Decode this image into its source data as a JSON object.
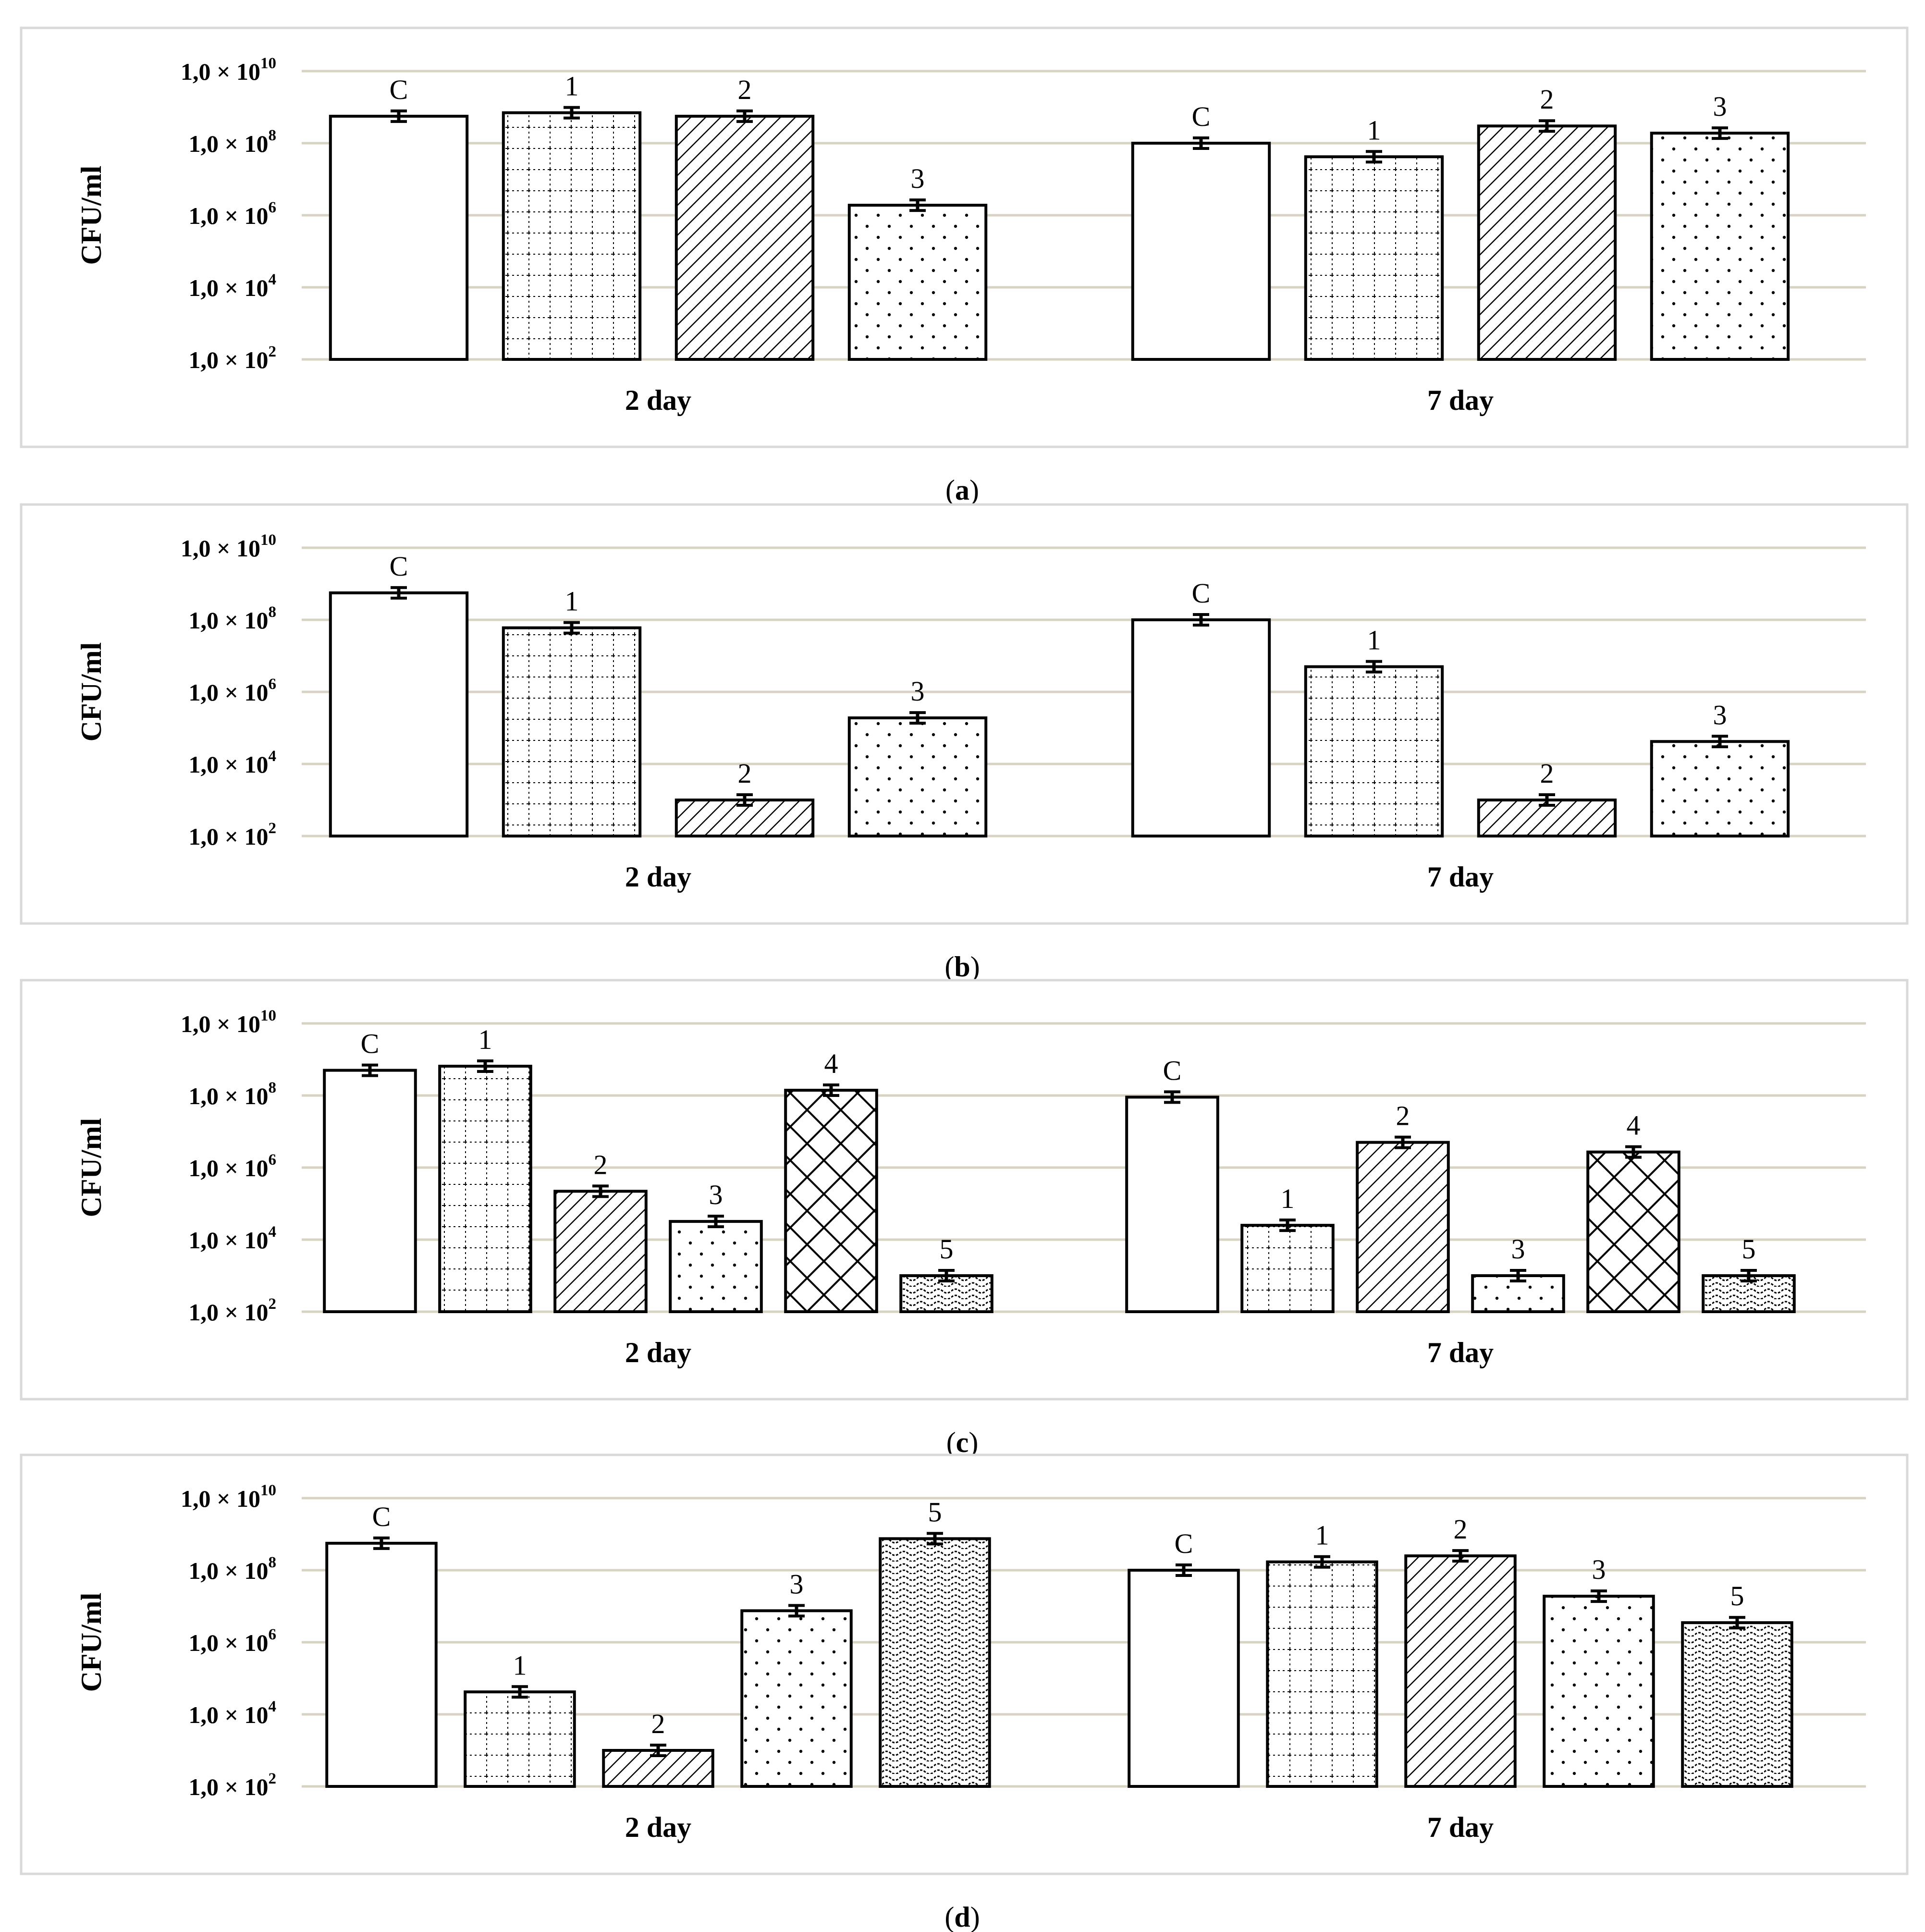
{
  "chart_data": [
    {
      "type": "bar",
      "panel": "a",
      "caption_letter": "a",
      "ylabel": "CFU/ml",
      "yscale": "log",
      "ylim": [
        100,
        10000000000
      ],
      "yticks": [
        {
          "mantissa": "1,0",
          "exp": "10"
        },
        {
          "mantissa": "1,0",
          "exp": "8"
        },
        {
          "mantissa": "1,0",
          "exp": "6"
        },
        {
          "mantissa": "1,0",
          "exp": "4"
        },
        {
          "mantissa": "1,0",
          "exp": "2"
        }
      ],
      "groups": [
        {
          "label": "2 day",
          "bars": [
            {
              "label": "C",
              "pattern": "plain",
              "value": 560000000
            },
            {
              "label": "1",
              "pattern": "grid",
              "value": 700000000
            },
            {
              "label": "2",
              "pattern": "diagonal",
              "value": 560000000
            },
            {
              "label": "3",
              "pattern": "dots",
              "value": 1900000
            }
          ]
        },
        {
          "label": "7 day",
          "bars": [
            {
              "label": "C",
              "pattern": "plain",
              "value": 100000000
            },
            {
              "label": "1",
              "pattern": "grid",
              "value": 42000000
            },
            {
              "label": "2",
              "pattern": "diagonal",
              "value": 300000000
            },
            {
              "label": "3",
              "pattern": "dots",
              "value": 190000000
            }
          ]
        }
      ]
    },
    {
      "type": "bar",
      "panel": "b",
      "caption_letter": "b",
      "ylabel": "CFU/ml",
      "yscale": "log",
      "ylim": [
        100,
        10000000000
      ],
      "yticks": [
        {
          "mantissa": "1,0",
          "exp": "10"
        },
        {
          "mantissa": "1,0",
          "exp": "8"
        },
        {
          "mantissa": "1,0",
          "exp": "6"
        },
        {
          "mantissa": "1,0",
          "exp": "4"
        },
        {
          "mantissa": "1,0",
          "exp": "2"
        }
      ],
      "groups": [
        {
          "label": "2 day",
          "bars": [
            {
              "label": "C",
              "pattern": "plain",
              "value": 560000000
            },
            {
              "label": "1",
              "pattern": "grid",
              "value": 60000000
            },
            {
              "label": "2",
              "pattern": "diagonal",
              "value": 1000
            },
            {
              "label": "3",
              "pattern": "dots",
              "value": 190000
            }
          ]
        },
        {
          "label": "7 day",
          "bars": [
            {
              "label": "C",
              "pattern": "plain",
              "value": 100000000
            },
            {
              "label": "1",
              "pattern": "grid",
              "value": 5000000
            },
            {
              "label": "2",
              "pattern": "diagonal",
              "value": 1000
            },
            {
              "label": "3",
              "pattern": "dots",
              "value": 42000
            }
          ]
        }
      ]
    },
    {
      "type": "bar",
      "panel": "c",
      "caption_letter": "c",
      "ylabel": "CFU/ml",
      "yscale": "log",
      "ylim": [
        100,
        10000000000
      ],
      "yticks": [
        {
          "mantissa": "1,0",
          "exp": "10"
        },
        {
          "mantissa": "1,0",
          "exp": "8"
        },
        {
          "mantissa": "1,0",
          "exp": "6"
        },
        {
          "mantissa": "1,0",
          "exp": "4"
        },
        {
          "mantissa": "1,0",
          "exp": "2"
        }
      ],
      "groups": [
        {
          "label": "2 day",
          "bars": [
            {
              "label": "C",
              "pattern": "plain",
              "value": 500000000
            },
            {
              "label": "1",
              "pattern": "grid",
              "value": 650000000
            },
            {
              "label": "2",
              "pattern": "diagonal",
              "value": 220000
            },
            {
              "label": "3",
              "pattern": "dots",
              "value": 32000
            },
            {
              "label": "4",
              "pattern": "crosshatch",
              "value": 140000000
            },
            {
              "label": "5",
              "pattern": "wave",
              "value": 1000
            }
          ]
        },
        {
          "label": "7 day",
          "bars": [
            {
              "label": "C",
              "pattern": "plain",
              "value": 90000000
            },
            {
              "label": "1",
              "pattern": "grid",
              "value": 25000
            },
            {
              "label": "2",
              "pattern": "diagonal",
              "value": 5000000
            },
            {
              "label": "3",
              "pattern": "dots",
              "value": 1000
            },
            {
              "label": "4",
              "pattern": "crosshatch",
              "value": 2700000
            },
            {
              "label": "5",
              "pattern": "wave",
              "value": 1000
            }
          ]
        }
      ]
    },
    {
      "type": "bar",
      "panel": "d",
      "caption_letter": "d",
      "ylabel": "CFU/ml",
      "yscale": "log",
      "ylim": [
        100,
        10000000000
      ],
      "yticks": [
        {
          "mantissa": "1,0",
          "exp": "10"
        },
        {
          "mantissa": "1,0",
          "exp": "8"
        },
        {
          "mantissa": "1,0",
          "exp": "6"
        },
        {
          "mantissa": "1,0",
          "exp": "4"
        },
        {
          "mantissa": "1,0",
          "exp": "2"
        }
      ],
      "groups": [
        {
          "label": "2 day",
          "bars": [
            {
              "label": "C",
              "pattern": "plain",
              "value": 560000000
            },
            {
              "label": "1",
              "pattern": "grid",
              "value": 42000
            },
            {
              "label": "2",
              "pattern": "diagonal",
              "value": 1000
            },
            {
              "label": "3",
              "pattern": "dots",
              "value": 7500000
            },
            {
              "label": "5",
              "pattern": "wave",
              "value": 750000000
            }
          ]
        },
        {
          "label": "7 day",
          "bars": [
            {
              "label": "C",
              "pattern": "plain",
              "value": 100000000
            },
            {
              "label": "1",
              "pattern": "grid",
              "value": 170000000
            },
            {
              "label": "2",
              "pattern": "diagonal",
              "value": 250000000
            },
            {
              "label": "3",
              "pattern": "dots",
              "value": 19000000
            },
            {
              "label": "5",
              "pattern": "wave",
              "value": 3500000
            }
          ]
        }
      ]
    }
  ],
  "colors": {
    "frame": "#d9d9d9",
    "gridline": "#d8d2c2",
    "bar_stroke": "#000000",
    "bar_fill": "#ffffff"
  }
}
